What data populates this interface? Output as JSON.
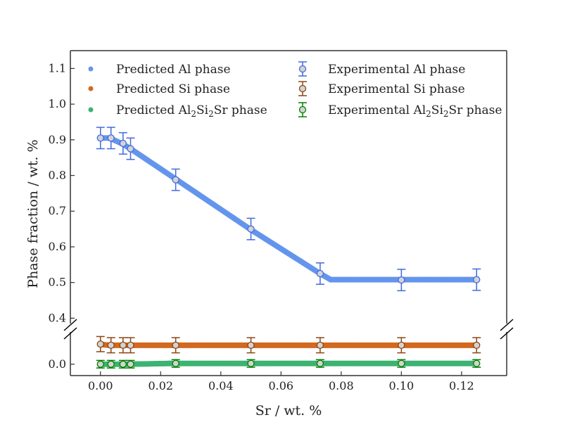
{
  "chart_data": {
    "type": "scatter",
    "title": "",
    "xlabel": "Sr / wt. %",
    "ylabel": "Phase fraction / wt. %",
    "xlim": [
      -0.01,
      0.135
    ],
    "upper_ylim": [
      0.385,
      1.15
    ],
    "lower_ylim": [
      -0.03,
      0.085
    ],
    "broken_y_axis": true,
    "x_ticks": [
      "0.00",
      "0.02",
      "0.04",
      "0.06",
      "0.08",
      "0.10",
      "0.12"
    ],
    "y_ticks_upper": [
      "0.4",
      "0.5",
      "0.6",
      "0.7",
      "0.8",
      "0.9",
      "1.0",
      "1.1"
    ],
    "y_ticks_lower": [
      "0.0"
    ],
    "legend_position": "top",
    "predicted": [
      {
        "name": "Predicted Al phase",
        "color": "#6495ED",
        "x": [
          0.0,
          0.003,
          0.007,
          0.01,
          0.025,
          0.05,
          0.073,
          0.0765,
          0.1,
          0.125
        ],
        "y": [
          0.905,
          0.905,
          0.89,
          0.875,
          0.79,
          0.648,
          0.525,
          0.508,
          0.508,
          0.508
        ]
      },
      {
        "name": "Predicted Si phase",
        "color": "#D2691E",
        "x": [
          0.0,
          0.003,
          0.125
        ],
        "y": [
          0.052,
          0.05,
          0.05
        ]
      },
      {
        "name": "Predicted Al2Si2Sr phase",
        "color": "#3CB371",
        "x": [
          0.0,
          0.01,
          0.023,
          0.125
        ],
        "y": [
          0.0,
          0.0,
          0.002,
          0.002
        ]
      }
    ],
    "experimental": [
      {
        "name": "Experimental Al phase",
        "edge_color": "#4169E1",
        "x": [
          0.0,
          0.0035,
          0.0075,
          0.01,
          0.025,
          0.05,
          0.073,
          0.1,
          0.125
        ],
        "y": [
          0.905,
          0.905,
          0.89,
          0.875,
          0.788,
          0.65,
          0.525,
          0.507,
          0.508
        ],
        "err": [
          0.03,
          0.03,
          0.03,
          0.03,
          0.03,
          0.03,
          0.03,
          0.03,
          0.03
        ]
      },
      {
        "name": "Experimental Si phase",
        "edge_color": "#8B4513",
        "x": [
          0.0,
          0.0035,
          0.0075,
          0.01,
          0.025,
          0.05,
          0.073,
          0.1,
          0.125
        ],
        "y": [
          0.053,
          0.05,
          0.05,
          0.05,
          0.05,
          0.05,
          0.05,
          0.05,
          0.05
        ],
        "err": [
          0.02,
          0.02,
          0.02,
          0.02,
          0.02,
          0.02,
          0.02,
          0.02,
          0.02
        ]
      },
      {
        "name": "Experimental Al2Si2Sr phase",
        "edge_color": "#008000",
        "x": [
          0.0,
          0.0035,
          0.0075,
          0.01,
          0.025,
          0.05,
          0.073,
          0.1,
          0.125
        ],
        "y": [
          0.0,
          0.0,
          0.0,
          0.0,
          0.002,
          0.002,
          0.002,
          0.002,
          0.002
        ],
        "err": [
          0.01,
          0.01,
          0.01,
          0.01,
          0.01,
          0.01,
          0.01,
          0.01,
          0.01
        ]
      }
    ],
    "marker_fill": "#D3D3D3"
  }
}
